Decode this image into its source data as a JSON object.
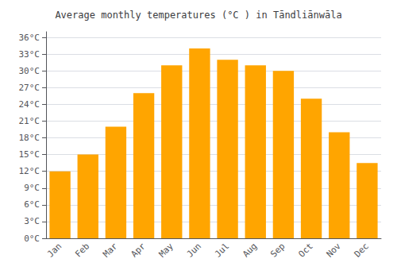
{
  "chart_data": {
    "type": "bar",
    "title": "Average monthly temperatures (°C ) in Tāndliānwāla",
    "categories": [
      "Jan",
      "Feb",
      "Mar",
      "Apr",
      "May",
      "Jun",
      "Jul",
      "Aug",
      "Sep",
      "Oct",
      "Nov",
      "Dec"
    ],
    "values": [
      12,
      15,
      20,
      26,
      31,
      34,
      32,
      31,
      30,
      25,
      19,
      13.5
    ],
    "color": "#FFA500",
    "ylim": [
      0,
      37
    ],
    "yticks": [
      {
        "value": 0,
        "label": "0°C"
      },
      {
        "value": 3,
        "label": "3°C"
      },
      {
        "value": 6,
        "label": "6°C"
      },
      {
        "value": 9,
        "label": "9°C"
      },
      {
        "value": 12,
        "label": "12°C"
      },
      {
        "value": 15,
        "label": "15°C"
      },
      {
        "value": 18,
        "label": "18°C"
      },
      {
        "value": 21,
        "label": "21°C"
      },
      {
        "value": 24,
        "label": "24°C"
      },
      {
        "value": 27,
        "label": "27°C"
      },
      {
        "value": 30,
        "label": "30°C"
      },
      {
        "value": 33,
        "label": "33°C"
      },
      {
        "value": 36,
        "label": "36°C"
      }
    ],
    "grid": true
  }
}
